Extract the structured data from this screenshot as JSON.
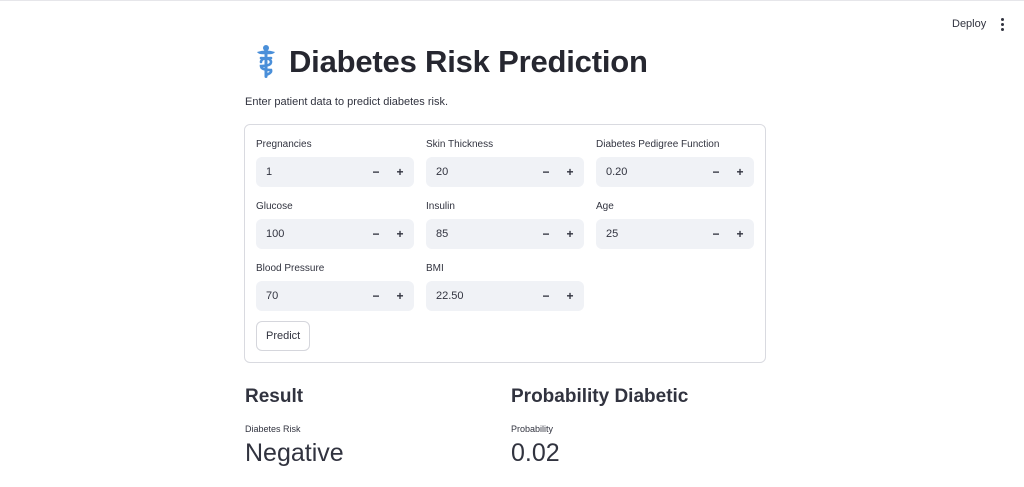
{
  "header": {
    "deploy_label": "Deploy",
    "menu_icon": "vertical-ellipsis-icon"
  },
  "title": {
    "icon": "caduceus-icon",
    "icon_color": "#4a8fd9",
    "text": "Diabetes Risk Prediction"
  },
  "subtitle": "Enter patient data to predict diabetes risk.",
  "form": {
    "fields": [
      {
        "label": "Pregnancies",
        "value": "1"
      },
      {
        "label": "Skin Thickness",
        "value": "20"
      },
      {
        "label": "Diabetes Pedigree Function",
        "value": "0.20"
      },
      {
        "label": "Glucose",
        "value": "100"
      },
      {
        "label": "Insulin",
        "value": "85"
      },
      {
        "label": "Age",
        "value": "25"
      },
      {
        "label": "Blood Pressure",
        "value": "70"
      },
      {
        "label": "BMI",
        "value": "22.50"
      }
    ],
    "minus": "−",
    "plus": "+",
    "predict_label": "Predict"
  },
  "result": {
    "heading": "Result",
    "metric_label": "Diabetes Risk",
    "metric_value": "Negative"
  },
  "probability": {
    "heading": "Probability Diabetic",
    "metric_label": "Probability",
    "metric_value": "0.02"
  }
}
